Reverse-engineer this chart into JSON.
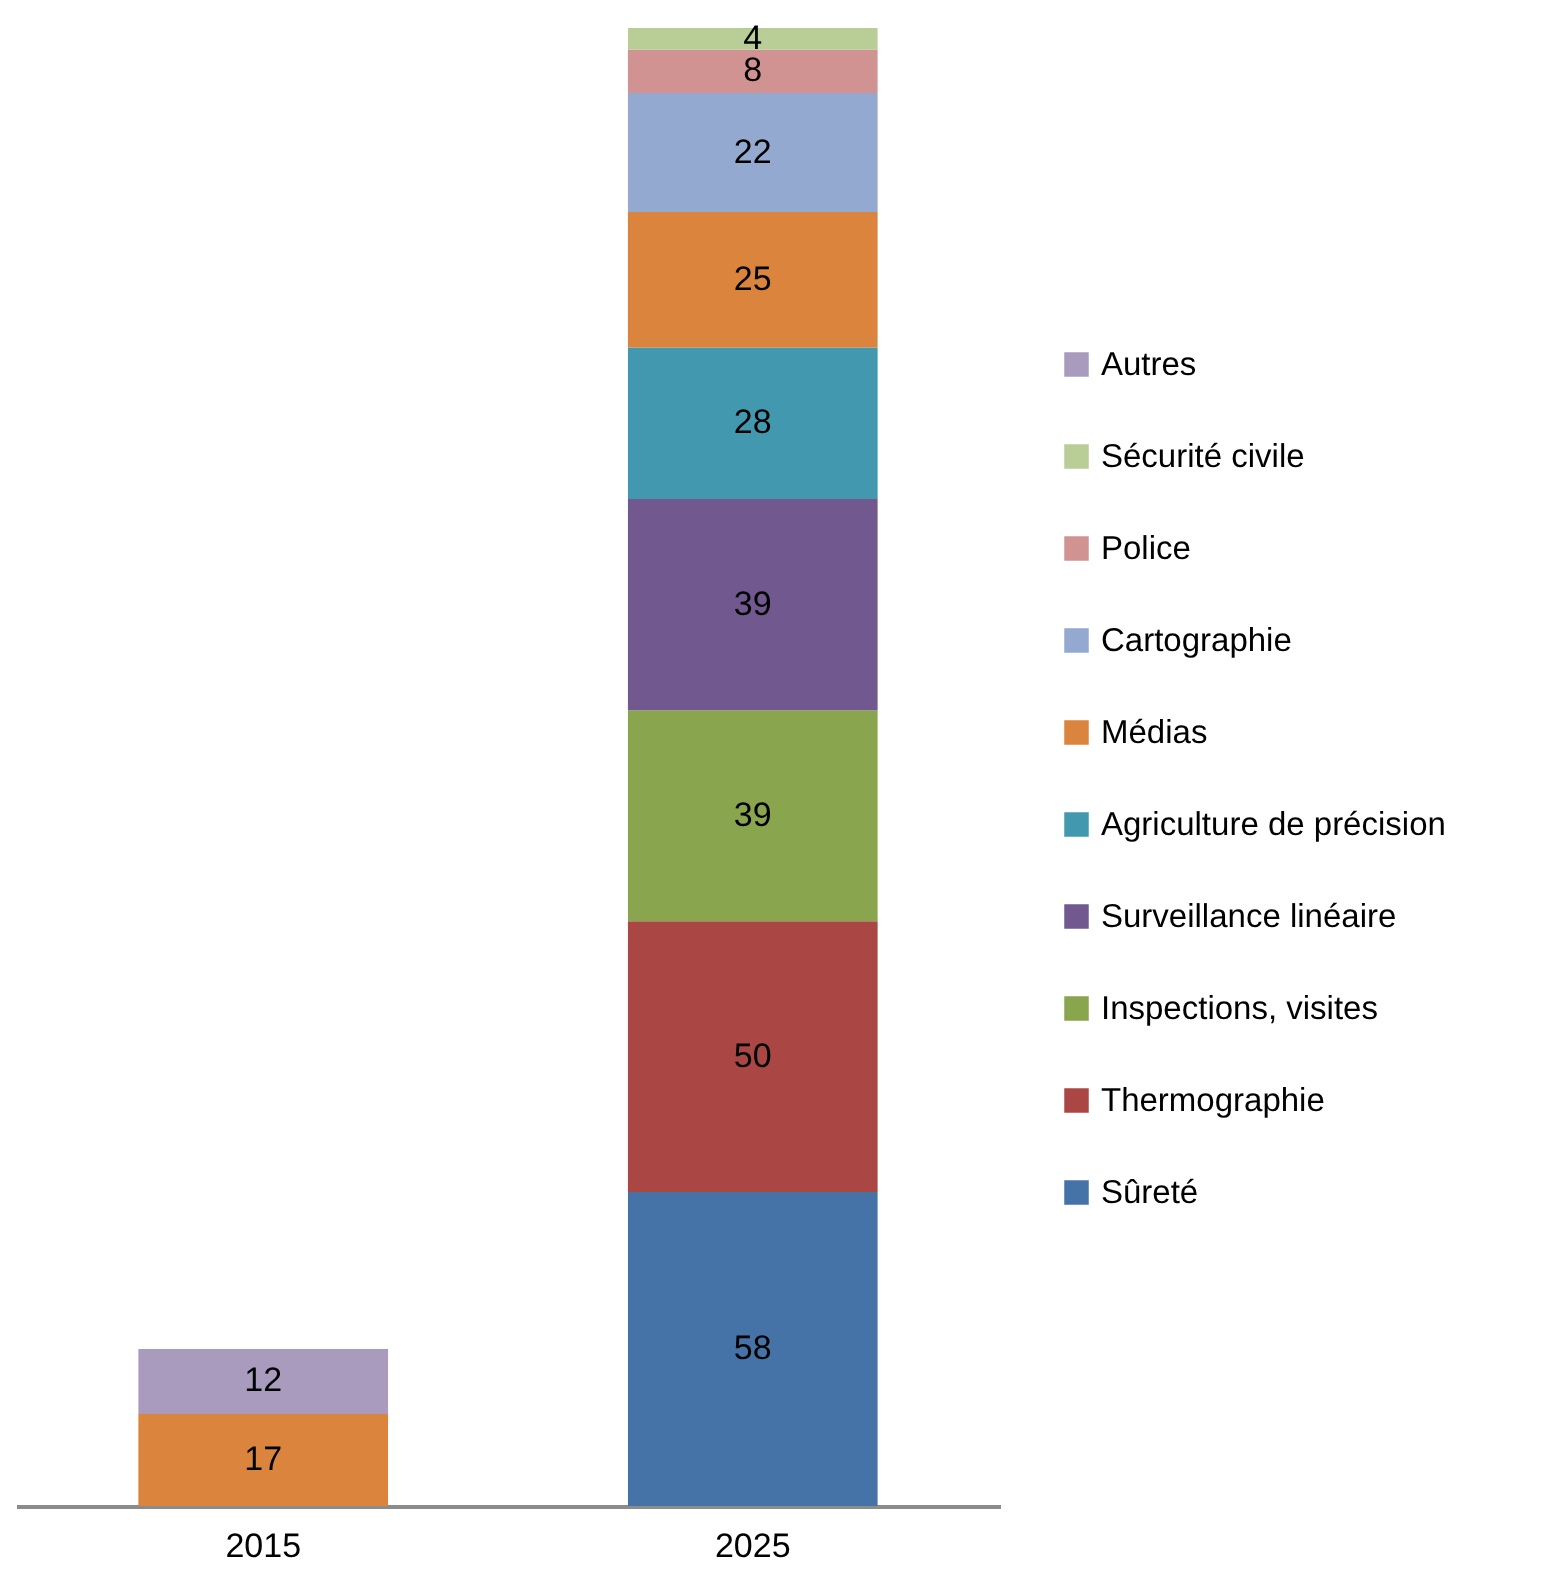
{
  "chart_data": {
    "type": "bar",
    "stacked": true,
    "categories": [
      "2015",
      "2025"
    ],
    "series": [
      {
        "name": "Sûreté",
        "color": "#4572a7",
        "values": [
          null,
          58
        ]
      },
      {
        "name": "Thermographie",
        "color": "#aa4643",
        "values": [
          null,
          50
        ]
      },
      {
        "name": "Inspections, visites",
        "color": "#89a54e",
        "values": [
          null,
          39
        ]
      },
      {
        "name": "Surveillance linéaire",
        "color": "#71588f",
        "values": [
          null,
          39
        ]
      },
      {
        "name": "Agriculture de précision",
        "color": "#4198af",
        "values": [
          null,
          28
        ]
      },
      {
        "name": "Médias",
        "color": "#db843d",
        "values": [
          17,
          25
        ]
      },
      {
        "name": "Cartographie",
        "color": "#93a9cf",
        "values": [
          null,
          22
        ]
      },
      {
        "name": "Police",
        "color": "#d19392",
        "values": [
          null,
          8
        ]
      },
      {
        "name": "Sécurité civile",
        "color": "#b9cd96",
        "values": [
          null,
          4
        ]
      },
      {
        "name": "Autres",
        "color": "#a99bbd",
        "values": [
          12,
          null
        ]
      }
    ],
    "data_labels": true,
    "legend": "right",
    "tick_labels": "x"
  }
}
